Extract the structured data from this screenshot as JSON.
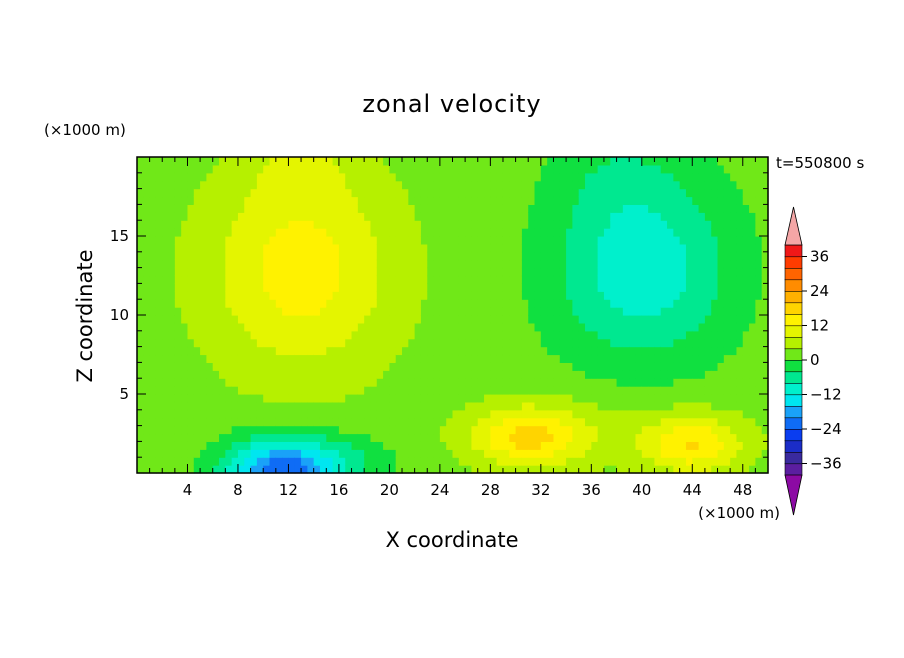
{
  "chart_data": {
    "type": "heatmap",
    "title": "zonal velocity",
    "xlabel": "X coordinate",
    "ylabel": "Z coordinate",
    "x_unit": "(×1000 m)",
    "y_unit": "(×1000 m)",
    "time_label": "t=550800 s",
    "xlim": [
      0,
      50
    ],
    "ylim": [
      0,
      20
    ],
    "xticks": [
      4,
      8,
      12,
      16,
      20,
      24,
      28,
      32,
      36,
      40,
      44,
      48
    ],
    "yticks": [
      5,
      10,
      15
    ],
    "colorbar": {
      "levels": [
        -40,
        -36,
        -32,
        -28,
        -24,
        -20,
        -16,
        -12,
        -8,
        -4,
        0,
        4,
        8,
        12,
        16,
        20,
        24,
        28,
        32,
        36,
        40
      ],
      "tick_values": [
        36,
        24,
        12,
        0,
        -12,
        -24,
        -36
      ],
      "tick_labels": [
        "36",
        "24",
        "12",
        "0",
        "−12",
        "−24",
        "−36"
      ],
      "colors": [
        "#5b1ea0",
        "#3a2a9e",
        "#1b2dc8",
        "#0a3df0",
        "#0f6cf5",
        "#1aa2f8",
        "#00e6f0",
        "#00f0cc",
        "#00e890",
        "#10e040",
        "#70e818",
        "#b6f000",
        "#e4f500",
        "#fff200",
        "#ffd400",
        "#ffb000",
        "#ff8c00",
        "#ff6400",
        "#ff3c00",
        "#f01818"
      ],
      "under_color": "#8c0aa4",
      "over_color": "#f4a6a6"
    },
    "field": {
      "background": 2,
      "components": [
        {
          "x": 13,
          "z": 12.8,
          "sx": 7.5,
          "sz": 6.5,
          "a": 12
        },
        {
          "x": 13,
          "z": 19.5,
          "sx": 4,
          "sz": 2.5,
          "a": 4
        },
        {
          "x": 11.5,
          "z": 0,
          "sx": 4.5,
          "sz": 2.2,
          "a": -26
        },
        {
          "x": 17,
          "z": 1,
          "sx": 4,
          "sz": 1.5,
          "a": -4
        },
        {
          "x": 40,
          "z": 13,
          "sx": 7,
          "sz": 6,
          "a": -13
        },
        {
          "x": 38,
          "z": 19,
          "sx": 5,
          "sz": 3,
          "a": -3
        },
        {
          "x": 31,
          "z": 2.3,
          "sx": 4.5,
          "sz": 1.9,
          "a": 14
        },
        {
          "x": 44,
          "z": 1.8,
          "sx": 4,
          "sz": 1.8,
          "a": 13
        },
        {
          "x": 37,
          "z": 2.8,
          "sx": 10,
          "sz": 2.5,
          "a": 3
        }
      ]
    }
  }
}
